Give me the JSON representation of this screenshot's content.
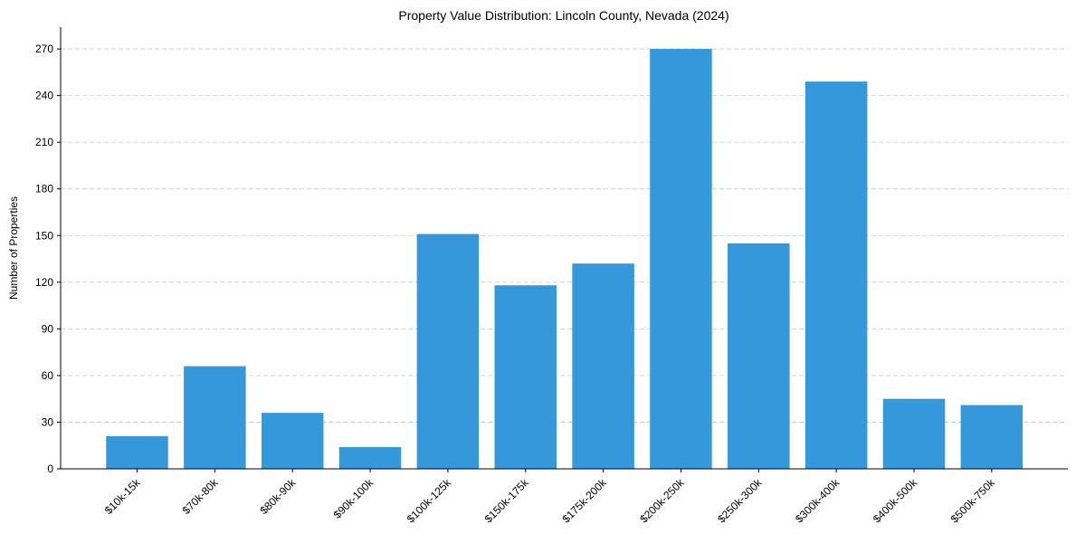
{
  "chart_data": {
    "type": "bar",
    "title": "Property Value Distribution: Lincoln County, Nevada (2024)",
    "xlabel": "",
    "ylabel": "Number of Properties",
    "categories": [
      "$10k-15k",
      "$70k-80k",
      "$80k-90k",
      "$90k-100k",
      "$100k-125k",
      "$150k-175k",
      "$175k-200k",
      "$200k-250k",
      "$250k-300k",
      "$300k-400k",
      "$400k-500k",
      "$500k-750k"
    ],
    "values": [
      21,
      66,
      36,
      14,
      151,
      118,
      132,
      270,
      145,
      249,
      45,
      41
    ],
    "ylim": [
      0,
      284
    ],
    "yticks": [
      0,
      30,
      60,
      90,
      120,
      150,
      180,
      210,
      240,
      270
    ],
    "grid": "y-dashed",
    "legend": "none"
  },
  "colors": {
    "bar": "#3498db",
    "grid": "#c8c8c8",
    "axis": "#000000"
  }
}
